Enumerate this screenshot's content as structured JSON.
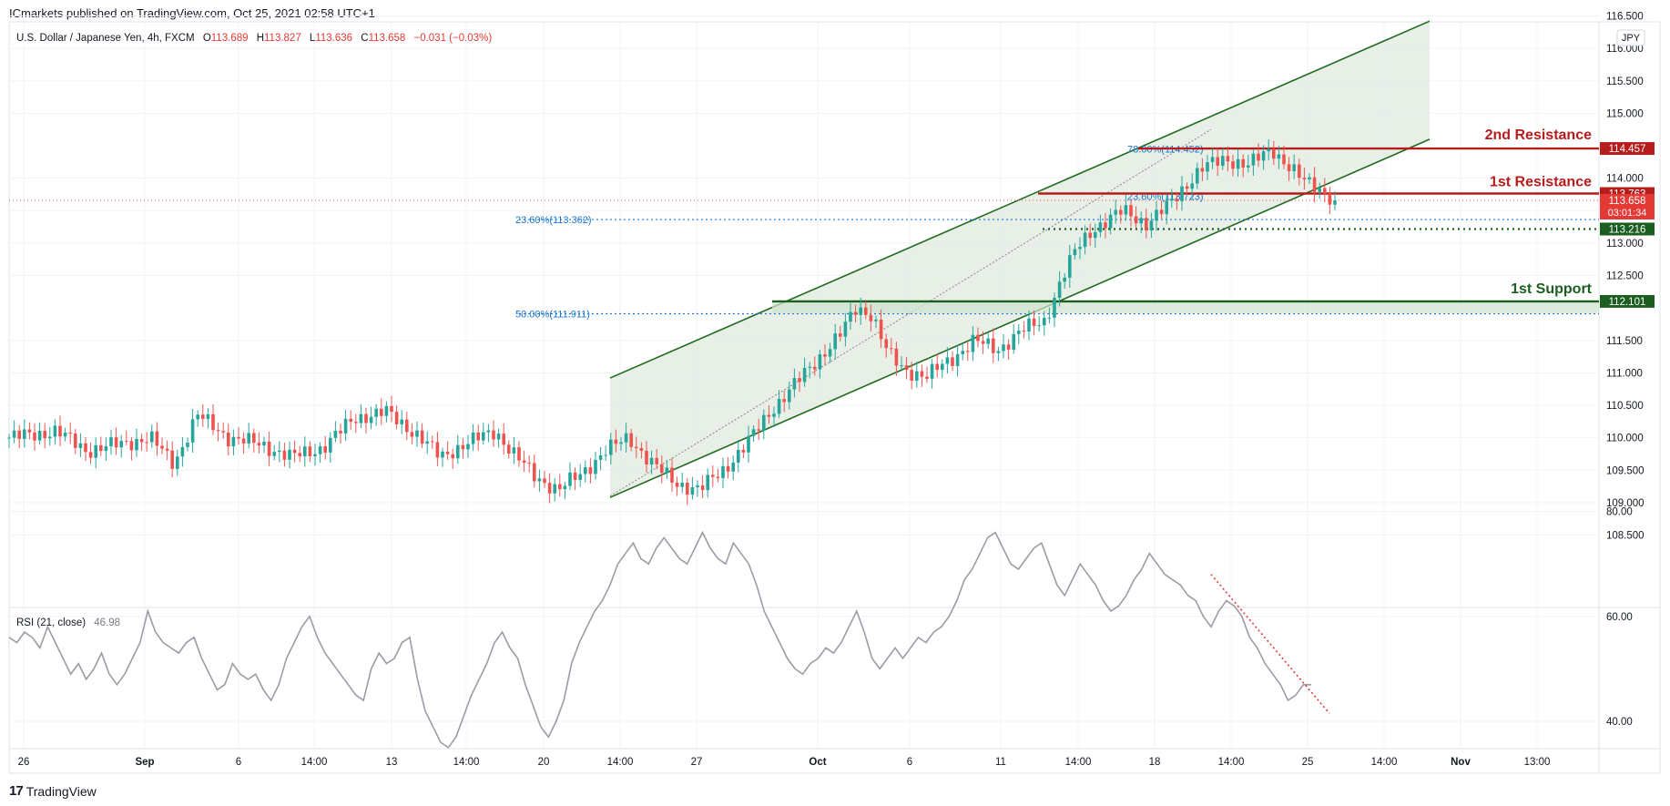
{
  "header": {
    "published": "ICmarkets published on TradingView.com, Oct 25, 2021 02:58 UTC+1"
  },
  "footer": {
    "brand": "TradingView",
    "logo_text": "17"
  },
  "legend": {
    "symbol": "U.S. Dollar / Japanese Yen, 4h, FXCM",
    "o_label": "O",
    "o_value": "113.689",
    "h_label": "H",
    "h_value": "113.827",
    "l_label": "L",
    "l_value": "113.636",
    "c_label": "C",
    "c_value": "113.658",
    "change": "−0.031 (−0.03%)",
    "currency": "JPY"
  },
  "rsi_legend": {
    "label": "RSI (21, close)",
    "value": "46.98"
  },
  "colors": {
    "bull": "#26a69a",
    "bear": "#ef5350",
    "channel": "#1e6b1e",
    "channel_fill": "#e3ece3",
    "resistance": "#b71c1c",
    "support": "#1b5e20",
    "fib": "#1976d2",
    "rsi": "#9e9aa6"
  },
  "chart_data": [
    {
      "type": "candlestick",
      "title": "U.S. Dollar / Japanese Yen, 4h, FXCM",
      "ylim": [
        108.1,
        116.8
      ],
      "y_ticks": [
        108.5,
        109.0,
        109.5,
        110.0,
        110.5,
        111.0,
        111.5,
        112.5,
        113.0,
        113.5,
        114.0,
        115.0,
        115.5,
        116.0,
        116.5
      ],
      "y_tick_labels": [
        "108.500",
        "109.000",
        "109.500",
        "110.000",
        "110.500",
        "111.000",
        "111.500",
        "112.500",
        "113.000",
        "113.500",
        "114.000",
        "115.000",
        "115.500",
        "116.000",
        "116.500"
      ],
      "x_tick_labels": [
        "26",
        "Sep",
        "6",
        "14:00",
        "13",
        "14:00",
        "20",
        "14:00",
        "27",
        "Oct",
        "6",
        "11",
        "14:00",
        "18",
        "14:00",
        "25",
        "14:00",
        "Nov",
        "13:00"
      ],
      "close_path": [
        [
          0,
          110.0
        ],
        [
          6,
          110.1
        ],
        [
          10,
          109.8
        ],
        [
          14,
          109.9
        ],
        [
          18,
          110.0
        ],
        [
          21,
          109.6
        ],
        [
          24,
          110.35
        ],
        [
          28,
          110.0
        ],
        [
          32,
          109.9
        ],
        [
          36,
          109.7
        ],
        [
          40,
          109.85
        ],
        [
          44,
          110.3
        ],
        [
          48,
          110.4
        ],
        [
          52,
          110.05
        ],
        [
          55,
          109.7
        ],
        [
          58,
          109.9
        ],
        [
          62,
          110.1
        ],
        [
          64,
          109.8
        ],
        [
          67,
          109.4
        ],
        [
          70,
          109.2
        ],
        [
          73,
          109.45
        ],
        [
          76,
          109.8
        ],
        [
          79,
          110.0
        ],
        [
          82,
          109.6
        ],
        [
          85,
          109.3
        ],
        [
          88,
          109.2
        ],
        [
          91,
          109.5
        ],
        [
          94,
          109.9
        ],
        [
          97,
          110.4
        ],
        [
          100,
          110.8
        ],
        [
          103,
          111.2
        ],
        [
          106,
          111.6
        ],
        [
          108,
          112.0
        ],
        [
          110,
          111.9
        ],
        [
          112,
          111.3
        ],
        [
          114,
          111.05
        ],
        [
          117,
          110.95
        ],
        [
          120,
          111.2
        ],
        [
          123,
          111.5
        ],
        [
          126,
          111.35
        ],
        [
          129,
          111.65
        ],
        [
          132,
          111.8
        ],
        [
          134,
          112.4
        ],
        [
          136,
          112.9
        ],
        [
          138,
          113.2
        ],
        [
          140,
          113.35
        ],
        [
          142,
          113.5
        ],
        [
          145,
          113.3
        ],
        [
          148,
          113.6
        ],
        [
          150,
          113.9
        ],
        [
          152,
          114.15
        ],
        [
          155,
          114.3
        ],
        [
          158,
          114.2
        ],
        [
          161,
          114.45
        ],
        [
          163,
          114.2
        ],
        [
          165,
          113.95
        ],
        [
          167,
          113.85
        ],
        [
          169,
          113.65
        ]
      ],
      "current_price": "113.658",
      "countdown": "03:01:34",
      "channel": {
        "upper_start": 110.92,
        "upper_end": 116.42,
        "lower_start": 109.08,
        "lower_end": 114.6
      },
      "levels": [
        {
          "name": "2nd Resistance",
          "value": "114.457",
          "price": 114.457
        },
        {
          "name": "1st Resistance",
          "value": "113.763",
          "price": 113.763
        },
        {
          "name": "1st Support",
          "value": "112.101",
          "price": 112.101
        },
        {
          "name": "",
          "value": "113.216",
          "price": 113.216
        }
      ],
      "fib_lines": [
        {
          "label": "23.60%(113.362)",
          "price": 113.362
        },
        {
          "label": "50.00%(111.911)",
          "price": 111.911
        },
        {
          "label": "78.60%(114.452)",
          "price": 114.452
        },
        {
          "label": "23.60%(113.723)",
          "price": 113.723
        }
      ]
    },
    {
      "type": "line",
      "title": "RSI (21, close)",
      "ylim": [
        33,
        82
      ],
      "y_ticks": [
        40,
        60,
        80
      ],
      "y_tick_labels": [
        "40.00",
        "60.00",
        "80.00"
      ],
      "current": 46.98,
      "values": [
        56,
        55,
        57,
        56,
        54,
        58,
        55,
        52,
        49,
        51,
        48,
        50,
        53,
        49,
        47,
        49,
        52,
        55,
        61,
        57,
        55,
        54,
        53,
        55,
        56,
        52,
        49,
        46,
        47,
        51,
        49,
        48,
        49,
        46,
        44,
        47,
        52,
        55,
        58,
        60,
        56,
        53,
        51,
        49,
        47,
        45,
        44,
        50,
        53,
        51,
        52,
        55,
        56,
        48,
        42,
        39,
        36,
        35,
        37,
        41,
        45,
        48,
        51,
        55,
        57,
        54,
        52,
        47,
        43,
        39,
        37,
        40,
        44,
        51,
        55,
        58,
        61,
        63,
        66,
        70,
        72,
        74,
        71,
        70,
        73,
        75,
        73,
        71,
        70,
        73,
        76,
        73,
        71,
        70,
        74,
        72,
        70,
        66,
        61,
        58,
        55,
        52,
        50,
        49,
        51,
        52,
        54,
        53,
        55,
        58,
        61,
        57,
        52,
        50,
        52,
        54,
        52,
        54,
        56,
        55,
        57,
        58,
        60,
        63,
        67,
        69,
        72,
        75,
        76,
        73,
        70,
        69,
        71,
        73,
        74,
        70,
        66,
        64,
        67,
        70,
        68,
        66,
        63,
        61,
        62,
        64,
        67,
        69,
        72,
        70,
        68,
        67,
        66,
        64,
        63,
        60,
        58,
        61,
        63,
        62,
        60,
        56,
        54,
        51,
        49,
        47,
        44,
        45,
        47,
        46.98
      ]
    }
  ]
}
